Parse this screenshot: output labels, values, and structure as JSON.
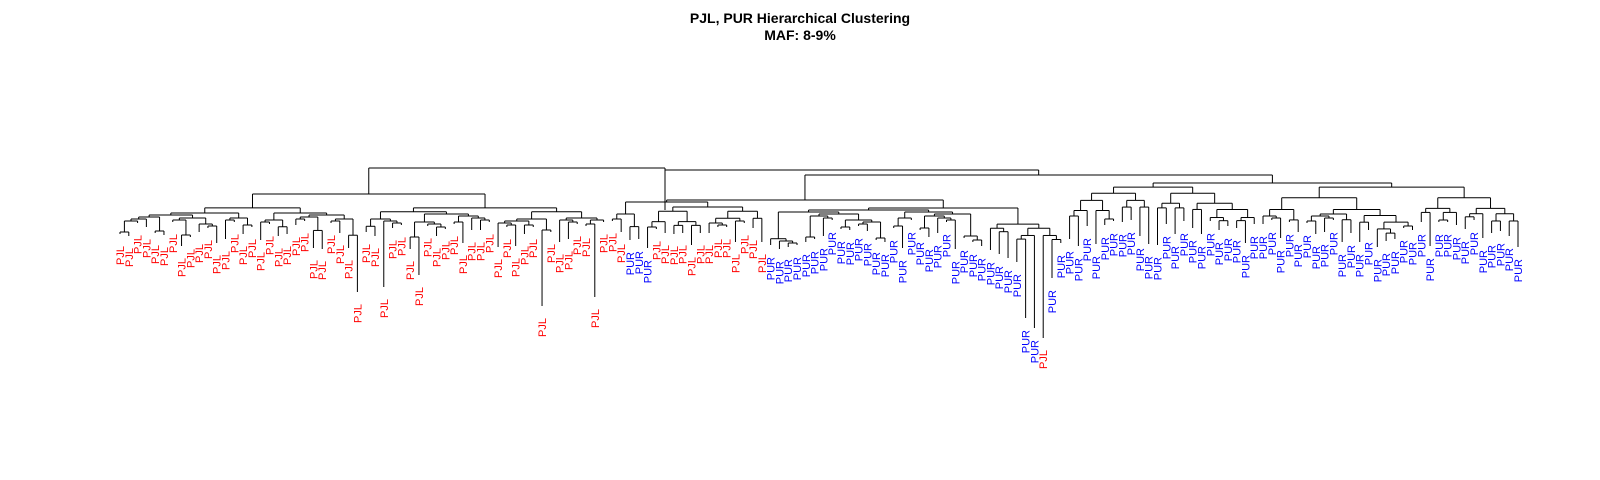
{
  "title": "PJL, PUR Hierarchical Clustering",
  "subtitle": "MAF: 8-9%",
  "colors": {
    "PJL": "#ff0000",
    "PUR": "#0000ff",
    "branch": "#000000"
  },
  "leaves": [
    "PJL",
    "PJL",
    "PJL",
    "PJL",
    "PJL",
    "PJL",
    "PJL",
    "PJL",
    "PJL",
    "PJL",
    "PJL",
    "PJL",
    "PJL",
    "PJL",
    "PJL",
    "PJL",
    "PJL",
    "PJL",
    "PJL",
    "PJL",
    "PJL",
    "PJL",
    "PJL",
    "PJL",
    "PJL",
    "PJL",
    "PJL",
    "PJL",
    "PJL",
    "PJL",
    "PJL",
    "PJL",
    "PJL",
    "PJL",
    "PJL",
    "PJL",
    "PJL",
    "PJL",
    "PJL",
    "PJL",
    "PJL",
    "PJL",
    "PJL",
    "PJL",
    "PJL",
    "PJL",
    "PJL",
    "PJL",
    "PJL",
    "PJL",
    "PJL",
    "PJL",
    "PJL",
    "PJL",
    "PJL",
    "PJL",
    "PJL",
    "PJL",
    "PUR",
    "PUR",
    "PUR",
    "PJL",
    "PJL",
    "PJL",
    "PJL",
    "PJL",
    "PJL",
    "PJL",
    "PJL",
    "PJL",
    "PJL",
    "PJL",
    "PJL",
    "PJL",
    "PUR",
    "PUR",
    "PUR",
    "PUR",
    "PUR",
    "PUR",
    "PUR",
    "PUR",
    "PUR",
    "PUR",
    "PUR",
    "PUR",
    "PUR",
    "PUR",
    "PUR",
    "PUR",
    "PUR",
    "PUR",
    "PUR",
    "PUR",
    "PUR",
    "PUR",
    "PUR",
    "PUR",
    "PUR",
    "PUR",
    "PUR",
    "PUR",
    "PUR",
    "PUR",
    "PUR",
    "PJL",
    "PUR",
    "PUR",
    "PUR",
    "PUR",
    "PUR",
    "PUR",
    "PUR",
    "PUR",
    "PUR",
    "PUR",
    "PUR",
    "PUR",
    "PUR",
    "PUR",
    "PUR",
    "PUR",
    "PUR",
    "PUR",
    "PUR",
    "PUR",
    "PUR",
    "PUR",
    "PUR",
    "PUR",
    "PUR",
    "PUR",
    "PUR",
    "PUR",
    "PUR",
    "PUR",
    "PUR",
    "PUR",
    "PUR",
    "PUR",
    "PUR",
    "PUR",
    "PUR",
    "PUR",
    "PUR",
    "PUR",
    "PUR",
    "PUR",
    "PUR",
    "PUR",
    "PUR",
    "PUR",
    "PUR",
    "PUR",
    "PUR",
    "PUR",
    "PUR",
    "PUR",
    "PUR",
    "PUR"
  ]
}
